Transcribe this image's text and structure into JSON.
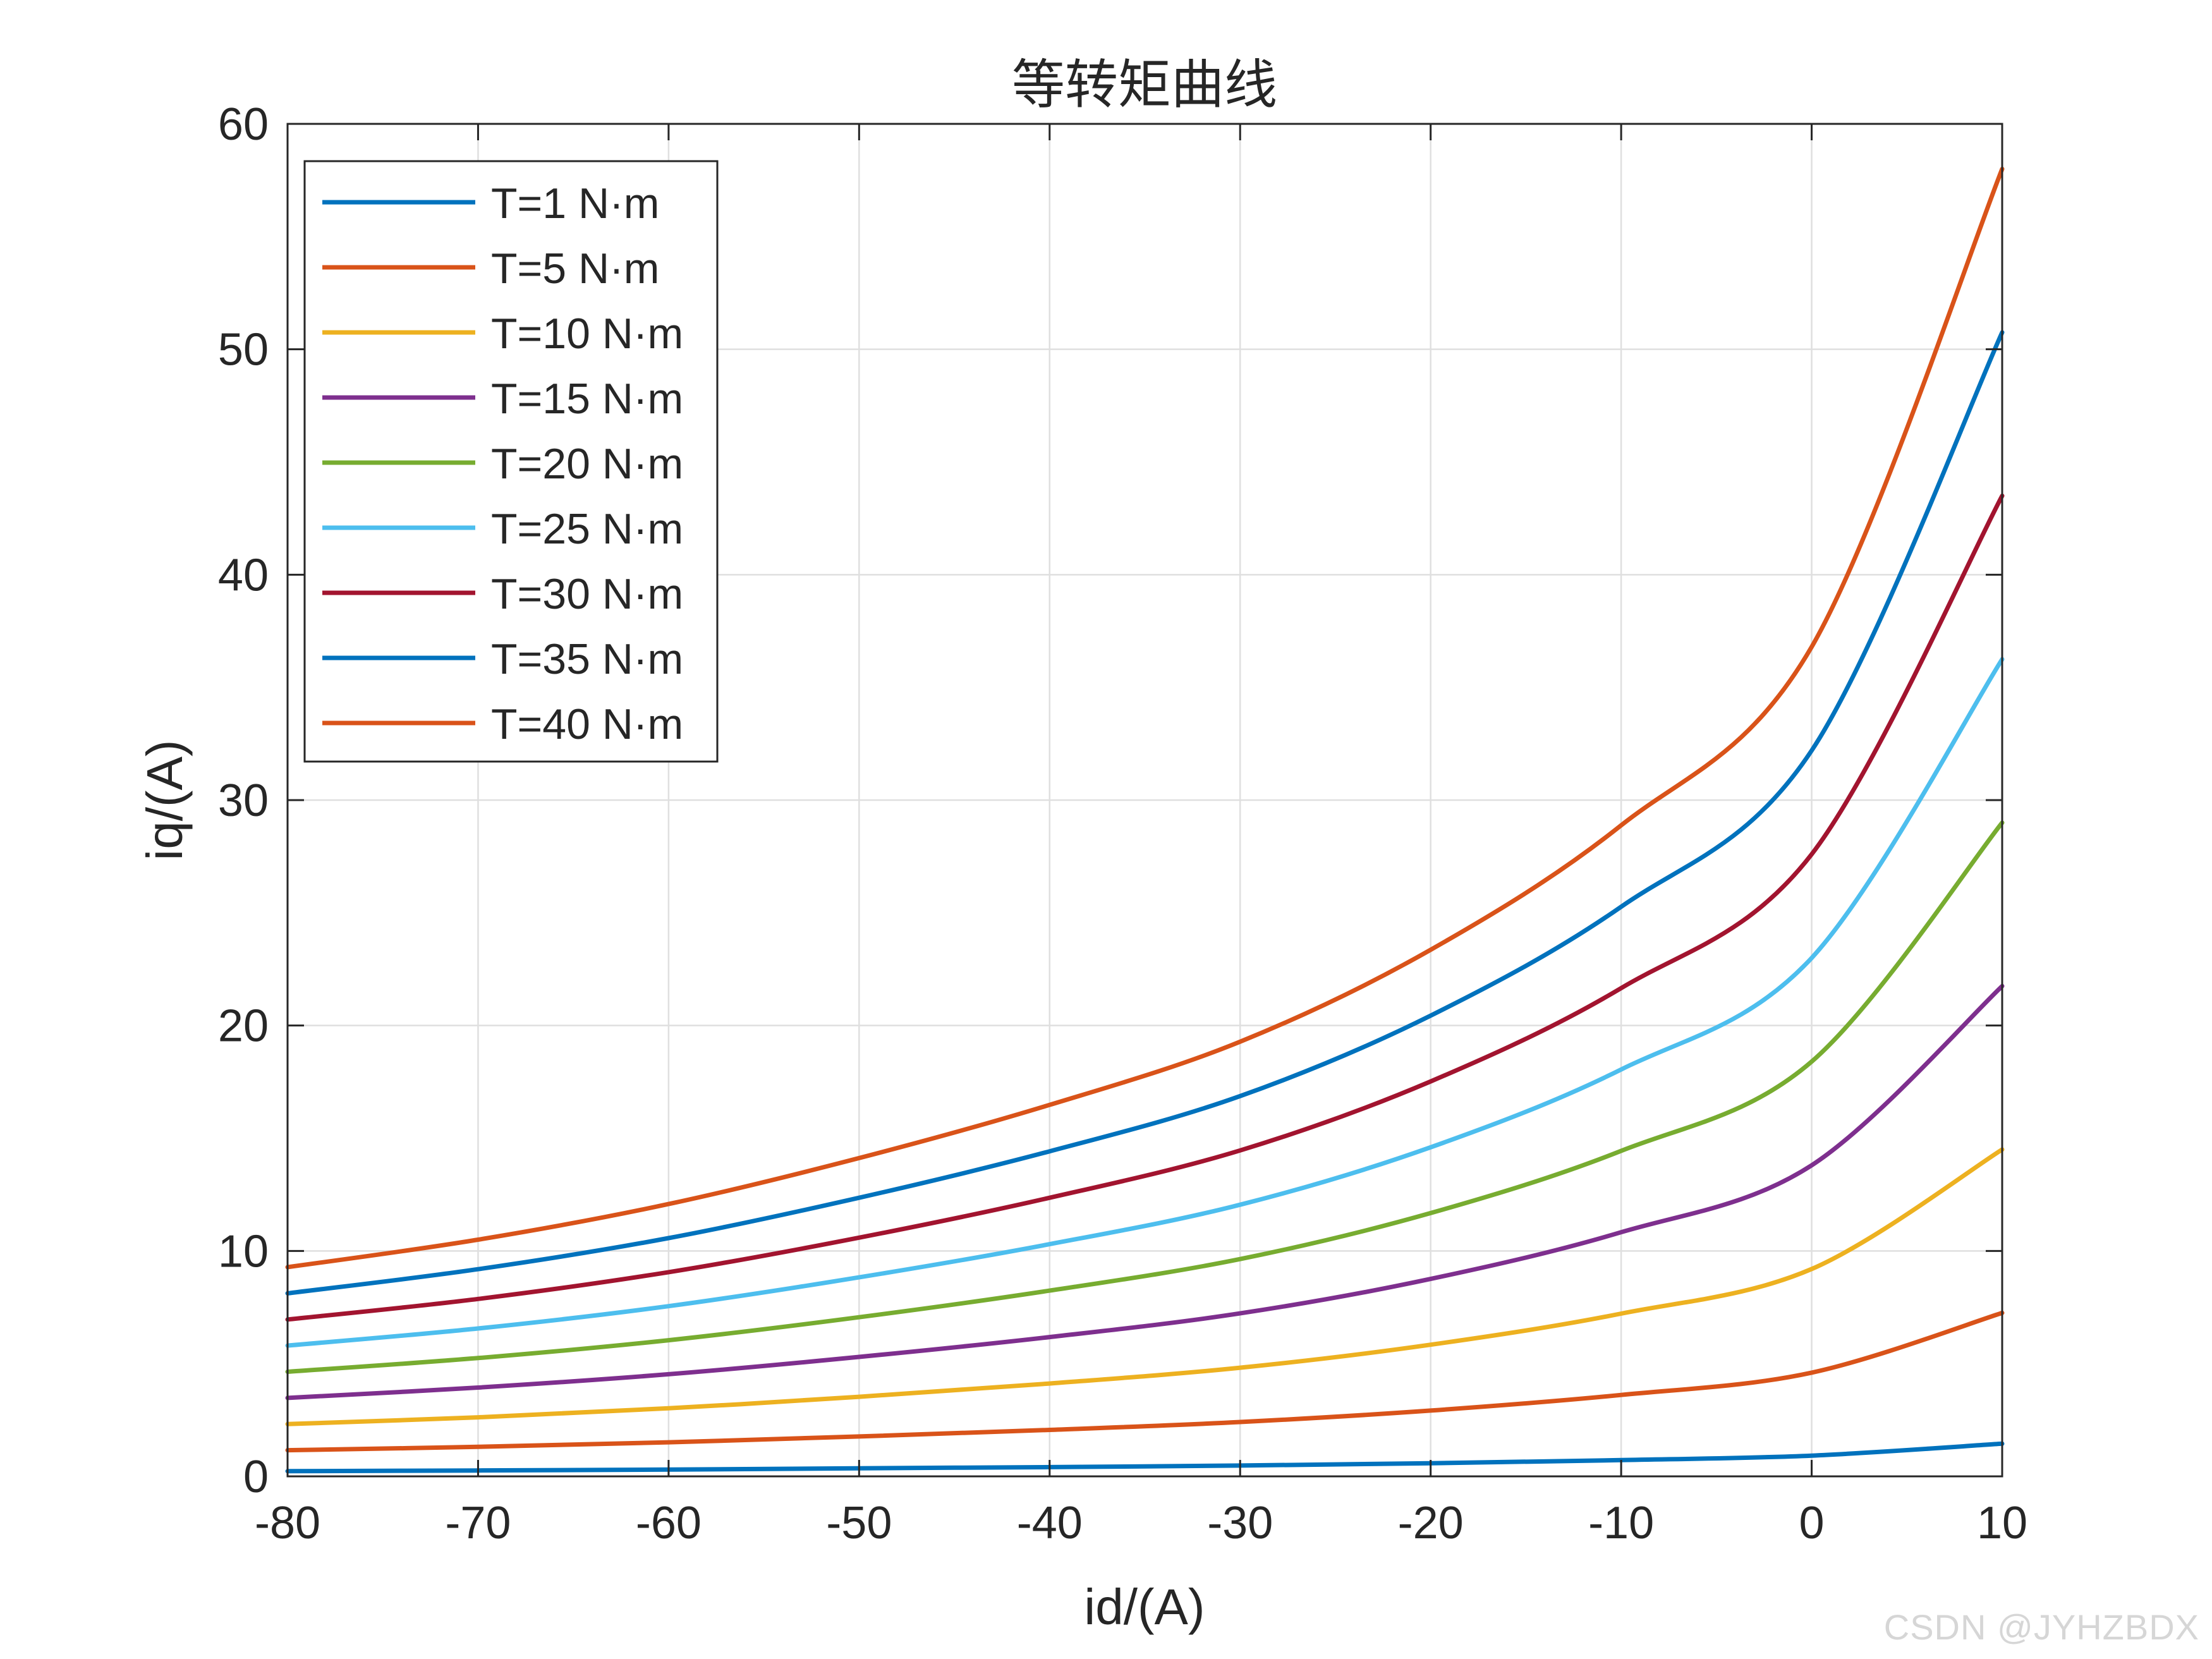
{
  "watermark": "CSDN @JYHZBDX",
  "chart_data": {
    "type": "line",
    "title": "等转矩曲线",
    "xlabel": "id/(A)",
    "ylabel": "iq/(A)",
    "xlim": [
      -80,
      10
    ],
    "ylim": [
      0,
      60
    ],
    "xticks": [
      -80,
      -70,
      -60,
      -50,
      -40,
      -30,
      -20,
      -10,
      0,
      10
    ],
    "yticks": [
      0,
      10,
      20,
      30,
      40,
      50,
      60
    ],
    "grid": true,
    "legend_position": "top-left",
    "x": [
      -80,
      -70,
      -60,
      -50,
      -40,
      -30,
      -20,
      -10,
      0,
      10
    ],
    "series": [
      {
        "name": "T=1 N·m",
        "color": "#0072BD",
        "values": [
          0.23,
          0.26,
          0.3,
          0.36,
          0.41,
          0.48,
          0.58,
          0.72,
          0.92,
          1.45
        ]
      },
      {
        "name": "T=5 N·m",
        "color": "#D95319",
        "values": [
          1.16,
          1.31,
          1.51,
          1.77,
          2.06,
          2.41,
          2.92,
          3.61,
          4.6,
          7.25
        ]
      },
      {
        "name": "T=10 N·m",
        "color": "#EDB120",
        "values": [
          2.32,
          2.62,
          3.02,
          3.53,
          4.12,
          4.82,
          5.84,
          7.22,
          9.2,
          14.5
        ]
      },
      {
        "name": "T=15 N·m",
        "color": "#7E2F8E",
        "values": [
          3.48,
          3.94,
          4.53,
          5.3,
          6.18,
          7.23,
          8.76,
          10.83,
          13.8,
          21.75
        ]
      },
      {
        "name": "T=20 N·m",
        "color": "#77AC30",
        "values": [
          4.64,
          5.25,
          6.04,
          7.06,
          8.24,
          9.64,
          11.68,
          14.44,
          18.4,
          29.0
        ]
      },
      {
        "name": "T=25 N·m",
        "color": "#4DBEEE",
        "values": [
          5.8,
          6.56,
          7.55,
          8.83,
          10.3,
          12.05,
          14.6,
          18.05,
          23.0,
          36.25
        ]
      },
      {
        "name": "T=30 N·m",
        "color": "#A2142F",
        "values": [
          6.96,
          7.87,
          9.06,
          10.59,
          12.36,
          14.46,
          17.52,
          21.66,
          27.6,
          43.5
        ]
      },
      {
        "name": "T=35 N·m",
        "color": "#0072BD",
        "values": [
          8.12,
          9.19,
          10.57,
          12.36,
          14.42,
          16.87,
          20.44,
          25.27,
          32.2,
          50.75
        ]
      },
      {
        "name": "T=40 N·m",
        "color": "#D95319",
        "values": [
          9.28,
          10.5,
          12.08,
          14.12,
          16.48,
          19.28,
          23.36,
          28.88,
          36.8,
          58.0
        ]
      }
    ]
  }
}
